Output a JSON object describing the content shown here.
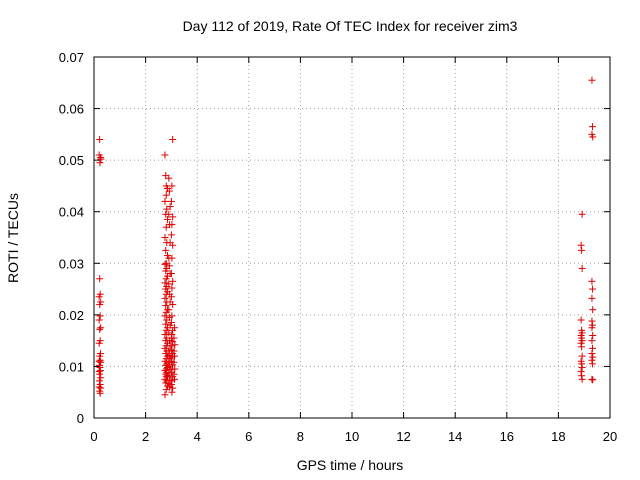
{
  "chart_data": {
    "type": "scatter",
    "title": "Day 112 of 2019, Rate Of TEC Index for receiver zim3",
    "xlabel": "GPS time / hours",
    "ylabel": "ROTI / TECUs",
    "xlim": [
      0,
      20
    ],
    "ylim": [
      0,
      0.07
    ],
    "x_ticks": [
      0,
      2,
      4,
      6,
      8,
      10,
      12,
      14,
      16,
      18,
      20
    ],
    "y_ticks": [
      0,
      0.01,
      0.02,
      0.03,
      0.04,
      0.05,
      0.06,
      0.07
    ],
    "x_tick_labels": [
      "0",
      "2",
      "4",
      "6",
      "8",
      "10",
      "12",
      "14",
      "16",
      "18",
      "20"
    ],
    "y_tick_labels": [
      "0",
      "0.01",
      "0.02",
      "0.03",
      "0.04",
      "0.05",
      "0.06",
      "0.07"
    ],
    "grid": true,
    "marker": "plus",
    "color": "#e00000",
    "series": [
      {
        "points": [
          [
            0.22,
            0.054
          ],
          [
            0.25,
            0.0505
          ],
          [
            0.2,
            0.051
          ],
          [
            0.23,
            0.0495
          ],
          [
            0.27,
            0.0502
          ],
          [
            0.22,
            0.027
          ],
          [
            0.24,
            0.024
          ],
          [
            0.2,
            0.0235
          ],
          [
            0.26,
            0.0225
          ],
          [
            0.22,
            0.022
          ],
          [
            0.24,
            0.0198
          ],
          [
            0.2,
            0.019
          ],
          [
            0.26,
            0.0175
          ],
          [
            0.22,
            0.0172
          ],
          [
            0.24,
            0.015
          ],
          [
            0.2,
            0.0145
          ],
          [
            0.25,
            0.0125
          ],
          [
            0.22,
            0.012
          ],
          [
            0.24,
            0.0112
          ],
          [
            0.2,
            0.011
          ],
          [
            0.26,
            0.0108
          ],
          [
            0.21,
            0.0102
          ],
          [
            0.23,
            0.0098
          ],
          [
            0.25,
            0.0092
          ],
          [
            0.2,
            0.009
          ],
          [
            0.22,
            0.0085
          ],
          [
            0.26,
            0.0078
          ],
          [
            0.21,
            0.0072
          ],
          [
            0.24,
            0.0065
          ],
          [
            0.2,
            0.006
          ],
          [
            0.26,
            0.0058
          ],
          [
            0.22,
            0.0052
          ],
          [
            0.24,
            0.0048
          ],
          [
            2.75,
            0.051
          ],
          [
            2.78,
            0.047
          ],
          [
            2.8,
            0.045
          ],
          [
            2.85,
            0.0445
          ],
          [
            2.8,
            0.0432
          ],
          [
            2.75,
            0.042
          ],
          [
            2.82,
            0.0405
          ],
          [
            2.78,
            0.0395
          ],
          [
            2.85,
            0.0385
          ],
          [
            2.8,
            0.037
          ],
          [
            2.75,
            0.035
          ],
          [
            2.82,
            0.034
          ],
          [
            2.78,
            0.0325
          ],
          [
            2.85,
            0.0315
          ],
          [
            2.8,
            0.03
          ],
          [
            2.75,
            0.0298
          ],
          [
            2.82,
            0.029
          ],
          [
            2.78,
            0.0285
          ],
          [
            2.85,
            0.0275
          ],
          [
            2.8,
            0.027
          ],
          [
            2.75,
            0.0262
          ],
          [
            2.82,
            0.0255
          ],
          [
            2.78,
            0.025
          ],
          [
            2.85,
            0.0245
          ],
          [
            2.8,
            0.024
          ],
          [
            2.75,
            0.0232
          ],
          [
            2.82,
            0.0225
          ],
          [
            2.78,
            0.0218
          ],
          [
            2.85,
            0.021
          ],
          [
            2.8,
            0.0205
          ],
          [
            2.75,
            0.0198
          ],
          [
            2.82,
            0.019
          ],
          [
            2.78,
            0.0182
          ],
          [
            2.85,
            0.0175
          ],
          [
            2.8,
            0.017
          ],
          [
            2.75,
            0.0162
          ],
          [
            2.82,
            0.0155
          ],
          [
            2.78,
            0.015
          ],
          [
            2.85,
            0.0145
          ],
          [
            2.8,
            0.014
          ],
          [
            2.75,
            0.0135
          ],
          [
            2.82,
            0.013
          ],
          [
            2.78,
            0.0125
          ],
          [
            2.85,
            0.012
          ],
          [
            2.8,
            0.0115
          ],
          [
            2.75,
            0.011
          ],
          [
            2.82,
            0.0105
          ],
          [
            2.78,
            0.0102
          ],
          [
            2.85,
            0.0098
          ],
          [
            2.8,
            0.0095
          ],
          [
            2.75,
            0.0092
          ],
          [
            2.82,
            0.0088
          ],
          [
            2.78,
            0.0085
          ],
          [
            2.85,
            0.0082
          ],
          [
            2.8,
            0.008
          ],
          [
            2.75,
            0.0075
          ],
          [
            2.82,
            0.0072
          ],
          [
            2.78,
            0.0068
          ],
          [
            2.85,
            0.0062
          ],
          [
            2.8,
            0.0055
          ],
          [
            2.75,
            0.0045
          ],
          [
            2.9,
            0.0465
          ],
          [
            2.92,
            0.044
          ],
          [
            2.95,
            0.041
          ],
          [
            2.9,
            0.0395
          ],
          [
            2.93,
            0.0375
          ],
          [
            2.95,
            0.034
          ],
          [
            2.9,
            0.031
          ],
          [
            2.92,
            0.0295
          ],
          [
            2.95,
            0.028
          ],
          [
            2.9,
            0.026
          ],
          [
            2.93,
            0.024
          ],
          [
            2.95,
            0.0225
          ],
          [
            2.9,
            0.021
          ],
          [
            2.92,
            0.0195
          ],
          [
            2.95,
            0.018
          ],
          [
            2.9,
            0.0165
          ],
          [
            2.93,
            0.015
          ],
          [
            2.95,
            0.014
          ],
          [
            2.9,
            0.013
          ],
          [
            2.92,
            0.0122
          ],
          [
            2.95,
            0.0115
          ],
          [
            2.9,
            0.0108
          ],
          [
            2.93,
            0.01
          ],
          [
            2.95,
            0.0094
          ],
          [
            2.9,
            0.0088
          ],
          [
            2.92,
            0.008
          ],
          [
            2.95,
            0.0073
          ],
          [
            2.9,
            0.0067
          ],
          [
            2.93,
            0.006
          ],
          [
            3.05,
            0.054
          ],
          [
            3.02,
            0.045
          ],
          [
            3.0,
            0.042
          ],
          [
            3.05,
            0.039
          ],
          [
            3.02,
            0.0375
          ],
          [
            3.0,
            0.0355
          ],
          [
            3.05,
            0.0335
          ],
          [
            3.02,
            0.031
          ],
          [
            3.0,
            0.028
          ],
          [
            3.05,
            0.0265
          ],
          [
            3.02,
            0.0252
          ],
          [
            3.0,
            0.0235
          ],
          [
            3.05,
            0.022
          ],
          [
            3.02,
            0.0198
          ],
          [
            3.0,
            0.0185
          ],
          [
            3.05,
            0.017
          ],
          [
            3.02,
            0.0162
          ],
          [
            3.0,
            0.0155
          ],
          [
            3.05,
            0.0148
          ],
          [
            3.02,
            0.014
          ],
          [
            3.0,
            0.0132
          ],
          [
            3.05,
            0.0125
          ],
          [
            3.02,
            0.0118
          ],
          [
            3.0,
            0.011
          ],
          [
            3.05,
            0.0103
          ],
          [
            3.02,
            0.0095
          ],
          [
            3.0,
            0.0088
          ],
          [
            3.05,
            0.008
          ],
          [
            3.02,
            0.0072
          ],
          [
            3.0,
            0.0065
          ],
          [
            3.05,
            0.0058
          ],
          [
            3.02,
            0.005
          ],
          [
            3.12,
            0.0175
          ],
          [
            3.1,
            0.0155
          ],
          [
            3.13,
            0.0142
          ],
          [
            3.1,
            0.013
          ],
          [
            3.12,
            0.012
          ],
          [
            3.1,
            0.0108
          ],
          [
            3.13,
            0.0095
          ],
          [
            3.1,
            0.0085
          ],
          [
            3.12,
            0.0075
          ],
          [
            18.92,
            0.0395
          ],
          [
            18.88,
            0.0335
          ],
          [
            18.9,
            0.0325
          ],
          [
            18.92,
            0.029
          ],
          [
            18.88,
            0.019
          ],
          [
            18.9,
            0.017
          ],
          [
            18.92,
            0.0165
          ],
          [
            18.88,
            0.016
          ],
          [
            18.9,
            0.0155
          ],
          [
            18.92,
            0.015
          ],
          [
            18.88,
            0.0145
          ],
          [
            18.9,
            0.0138
          ],
          [
            18.92,
            0.012
          ],
          [
            18.88,
            0.011
          ],
          [
            18.9,
            0.0105
          ],
          [
            18.92,
            0.0098
          ],
          [
            18.88,
            0.009
          ],
          [
            18.9,
            0.0082
          ],
          [
            18.92,
            0.0075
          ],
          [
            19.3,
            0.0655
          ],
          [
            19.32,
            0.0565
          ],
          [
            19.3,
            0.055
          ],
          [
            19.33,
            0.0545
          ],
          [
            19.3,
            0.0265
          ],
          [
            19.32,
            0.025
          ],
          [
            19.3,
            0.0232
          ],
          [
            19.33,
            0.021
          ],
          [
            19.3,
            0.0188
          ],
          [
            19.32,
            0.018
          ],
          [
            19.3,
            0.0175
          ],
          [
            19.33,
            0.016
          ],
          [
            19.3,
            0.015
          ],
          [
            19.32,
            0.0135
          ],
          [
            19.3,
            0.0125
          ],
          [
            19.33,
            0.0118
          ],
          [
            19.3,
            0.0112
          ],
          [
            19.32,
            0.0105
          ],
          [
            19.3,
            0.0075
          ],
          [
            19.33,
            0.0074
          ]
        ]
      }
    ]
  }
}
